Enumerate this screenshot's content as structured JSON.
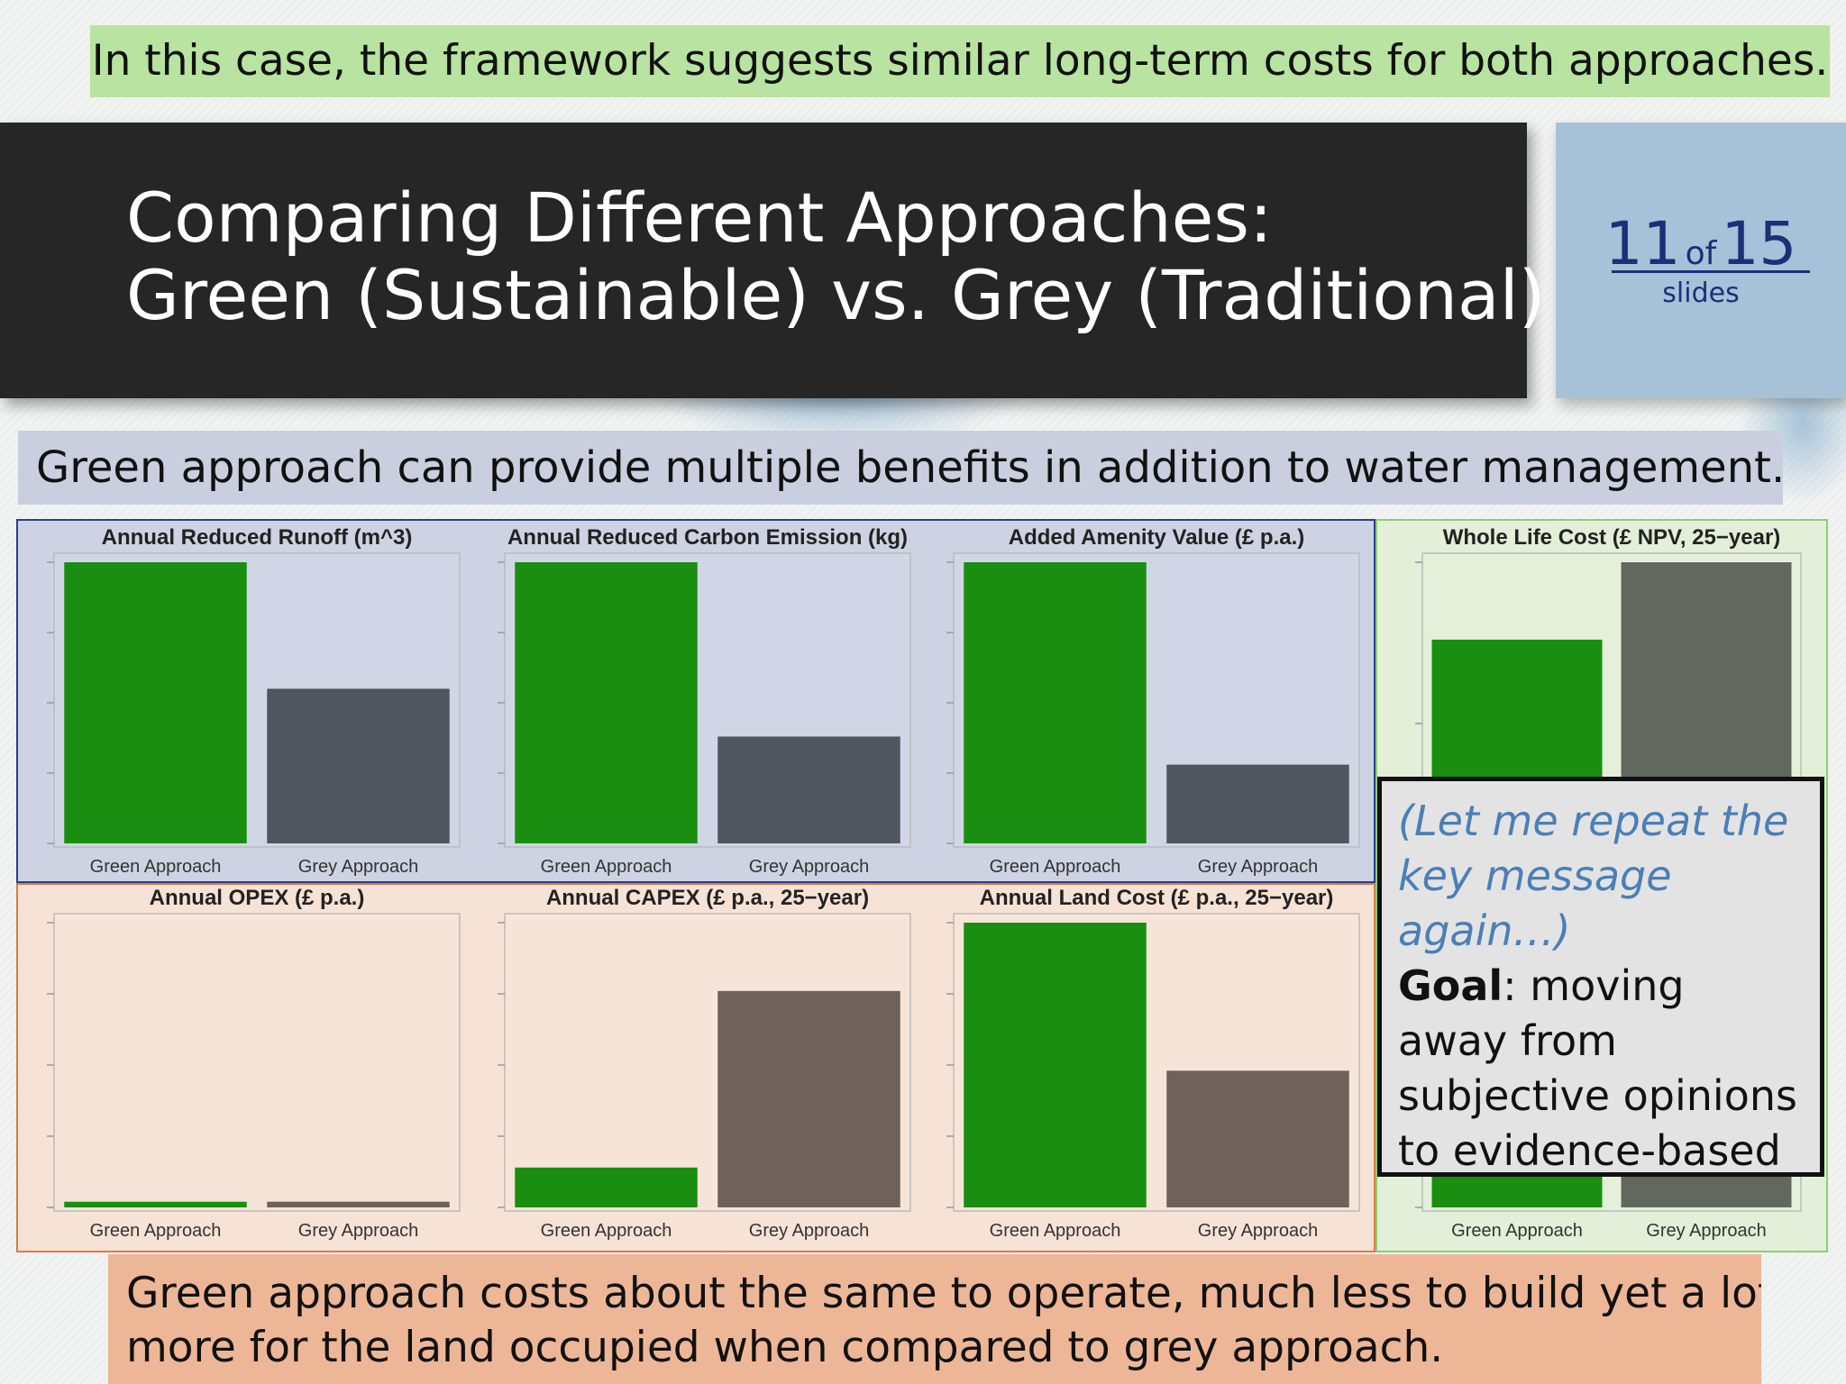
{
  "top_banner": "In this case, the framework suggests similar long-term costs for both approaches.",
  "title": {
    "line1": "Comparing Different Approaches:",
    "line2": "Green (Sustainable) vs. Grey (Traditional)"
  },
  "counter": {
    "current": "11",
    "of": "of",
    "total": "15",
    "label": "slides"
  },
  "green_banner": "Green approach can provide multiple benefits in addition to water management.",
  "bottom_banner": {
    "line1": "Green approach costs about the same to operate, much less to build yet a lot",
    "line2": "more for the land occupied when compared to grey approach."
  },
  "callout": {
    "italic_line1": "(Let me repeat the",
    "italic_line2": "key message again…)",
    "goal_label": "Goal",
    "goal_text": ": moving away from subjective opinions to evidence-based comparison."
  },
  "colors": {
    "green_bar": "#1a8e10",
    "grey_bar": "#51555e",
    "brown_bar": "#6f625b",
    "whole_life_grey": "#62675f",
    "benefit_bg": "#cdd3e3",
    "cost_bg": "#f7e2d6",
    "wlc_bg": "#e3efd8"
  },
  "chart_data": [
    {
      "type": "bar",
      "title": "Annual Reduced Runoff (m^3)",
      "categories": [
        "Green Approach",
        "Grey Approach"
      ],
      "values": [
        100,
        55
      ]
    },
    {
      "type": "bar",
      "title": "Annual Reduced Carbon Emission (kg)",
      "categories": [
        "Green Approach",
        "Grey Approach"
      ],
      "values": [
        100,
        38
      ]
    },
    {
      "type": "bar",
      "title": "Added Amenity Value (£ p.a.)",
      "categories": [
        "Green Approach",
        "Grey Approach"
      ],
      "values": [
        100,
        28
      ]
    },
    {
      "type": "bar",
      "title": "Annual OPEX (£ p.a.)",
      "categories": [
        "Green Approach",
        "Grey Approach"
      ],
      "values": [
        2,
        2
      ]
    },
    {
      "type": "bar",
      "title": "Annual CAPEX (£ p.a., 25−year)",
      "categories": [
        "Green Approach",
        "Grey Approach"
      ],
      "values": [
        14,
        76
      ]
    },
    {
      "type": "bar",
      "title": "Annual Land Cost (£ p.a., 25−year)",
      "categories": [
        "Green Approach",
        "Grey Approach"
      ],
      "values": [
        100,
        48
      ]
    },
    {
      "type": "bar",
      "title": "Whole Life Cost (£ NPV, 25−year)",
      "categories": [
        "Green Approach",
        "Grey Approach"
      ],
      "values": [
        88,
        100
      ]
    }
  ]
}
